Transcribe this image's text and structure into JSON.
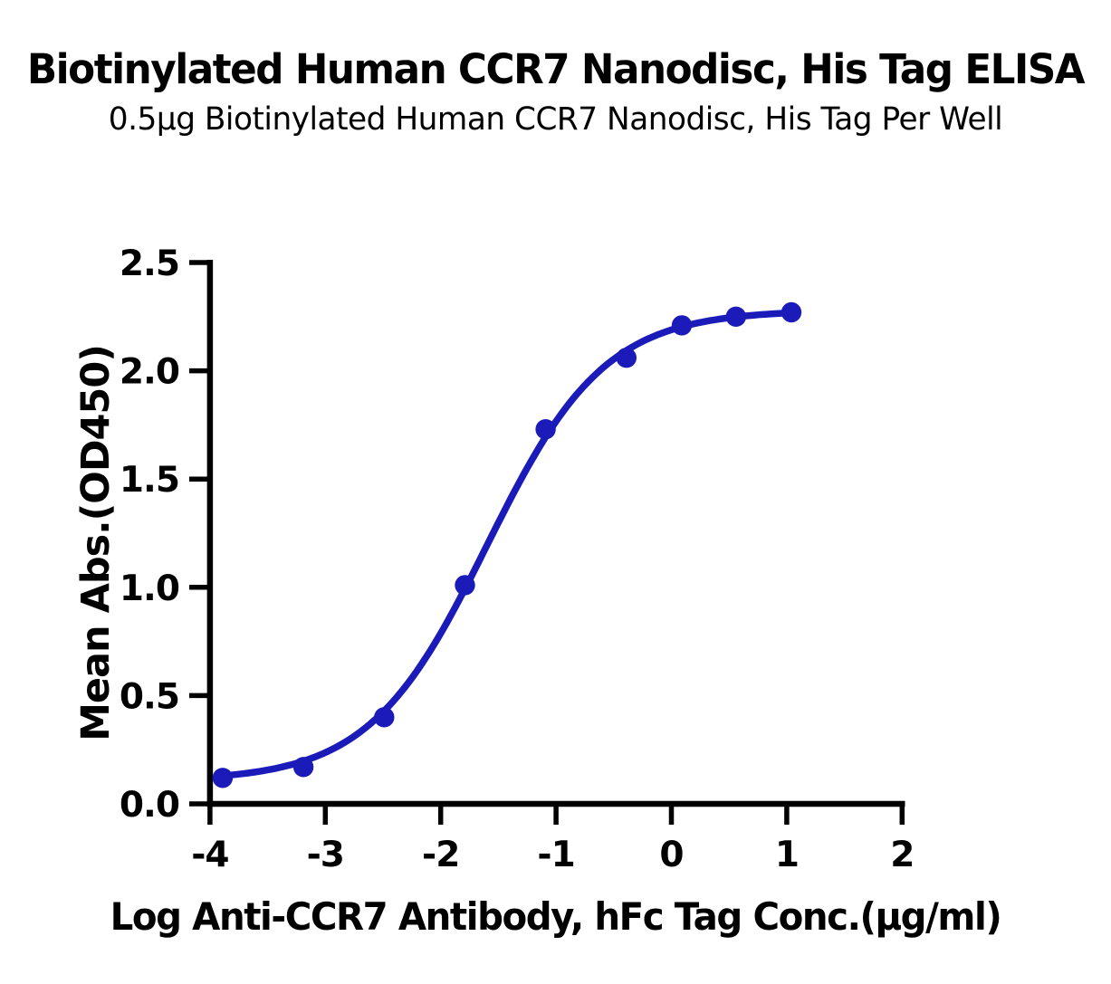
{
  "chart_data": {
    "type": "scatter",
    "title": "Biotinylated Human CCR7 Nanodisc, His Tag ELISA",
    "subtitle": "0.5μg Biotinylated Human CCR7 Nanodisc, His Tag Per Well",
    "xlabel": "Log Anti-CCR7 Antibody, hFc Tag Conc.(μg/ml)",
    "ylabel": "Mean Abs.(OD450)",
    "xlim": [
      -4,
      2
    ],
    "ylim": [
      0,
      2.5
    ],
    "x_ticks": [
      "-4",
      "-3",
      "-2",
      "-1",
      "0",
      "1",
      "2"
    ],
    "y_ticks": [
      "0.0",
      "0.5",
      "1.0",
      "1.5",
      "2.0",
      "2.5"
    ],
    "grid": false,
    "legend": false,
    "axis_color": "#000000",
    "background_color": "#ffffff",
    "series": [
      {
        "name": "Biotinylated Human CCR7 Nanodisc, His Tag",
        "color": "#1b1bb9",
        "marker": "circle",
        "points": [
          {
            "x": -3.89,
            "y": 0.12
          },
          {
            "x": -3.19,
            "y": 0.17
          },
          {
            "x": -2.49,
            "y": 0.4
          },
          {
            "x": -1.79,
            "y": 1.01
          },
          {
            "x": -1.09,
            "y": 1.73
          },
          {
            "x": -0.39,
            "y": 2.06
          },
          {
            "x": 0.09,
            "y": 2.21
          },
          {
            "x": 0.56,
            "y": 2.25
          },
          {
            "x": 1.04,
            "y": 2.27
          }
        ],
        "fitted_curve": {
          "model": "4PL",
          "bottom": 0.105,
          "top": 2.28,
          "log_ec50": -1.6,
          "hill": 0.85
        }
      }
    ]
  }
}
